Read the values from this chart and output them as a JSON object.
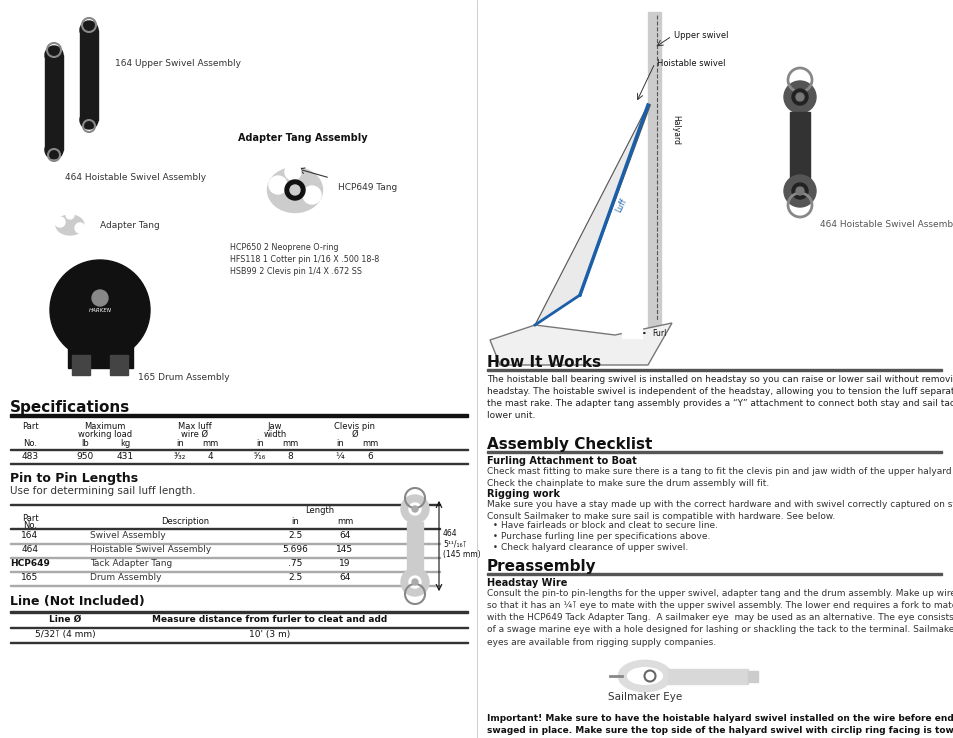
{
  "bg_color": "#ffffff",
  "left_panel": {
    "specs_title": "Specifications",
    "pin_title": "Pin to Pin Lengths",
    "pin_subtitle": "Use for determining sail luff length.",
    "pin_table_rows": [
      [
        "164",
        "Swivel Assembly",
        "2.5",
        "64"
      ],
      [
        "464",
        "Hoistable Swivel Assembly",
        "5.696",
        "145"
      ],
      [
        "HCP649",
        "Tack Adapter Tang",
        ".75",
        "19"
      ],
      [
        "165",
        "Drum Assembly",
        "2.5",
        "64"
      ]
    ],
    "dim_label": "464\n5¹¹/₁₆⊺\n(145 mm)",
    "line_title": "Line (Not Included)",
    "line_header": [
      "Line Ø",
      "Measure distance from furler to cleat and add"
    ],
    "line_row": [
      "5/32⊺ (4 mm)",
      "10' (3 m)"
    ]
  },
  "right_panel": {
    "how_it_works_title": "How It Works",
    "how_it_works_text": "The hoistable ball bearing swivel is installed on headstay so you can raise or lower sail without removing\nheadstay. The hoistable swivel is independent of the headstay, allowing you to tension the luff separately from\nthe mast rake. The adapter tang assembly provides a “Y” attachment to connect both stay and sail tack to the\nlower unit.",
    "assembly_title": "Assembly Checklist",
    "furling_subtitle": "Furling Attachment to Boat",
    "furling_text": "Check mast fitting to make sure there is a tang to fit the clevis pin and jaw width of the upper halyard swivel.\nCheck the chainplate to make sure the drum assembly will fit.",
    "rigging_subtitle": "Rigging work",
    "rigging_text": "Make sure you have a stay made up with the correct hardware and with swivel correctly captured on stay.\nConsult Sailmaker to make sure sail is compatible with hardware. See below.",
    "rigging_bullets": [
      "  • Have fairleads or block and cleat to secure line.",
      "  • Purchase furling line per specifications above.",
      "  • Check halyard clearance of upper swivel."
    ],
    "preassembly_title": "Preassembly",
    "headstay_subtitle": "Headstay Wire",
    "headstay_text": "Consult the pin-to pin-lengths for the upper swivel, adapter tang and the drum assembly. Make up wire\nso that it has an ¼⊺ eye to mate with the upper swivel assembly. The lower end requires a fork to mate\nwith the HCP649 Tack Adapter Tang.  A sailmaker eye  may be used as an alternative. The eye consists\nof a swage marine eye with a hole designed for lashing or shackling the tack to the terminal. Sailmaker\neyes are available from rigging supply companies.",
    "sailmaker_label": "Sailmaker Eye",
    "important_text": "Important! Make sure to have the hoistable halyard swivel installed on the wire before ends are\nswaged in place. Make sure the top side of the halyard swivel with circlip ring facing is towards the\ntop as shown."
  }
}
